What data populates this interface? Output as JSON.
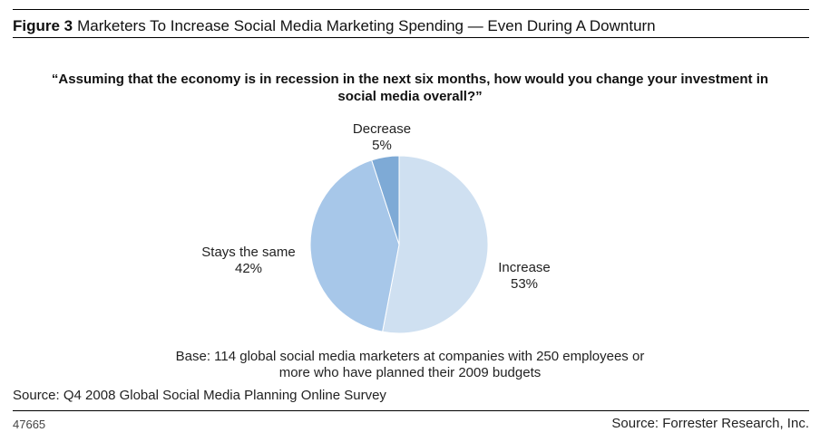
{
  "header": {
    "figure_label": "Figure 3",
    "title": "Marketers To Increase Social Media Marketing Spending — Even During A Downturn"
  },
  "question": "“Assuming that the economy is in recession in the next six months, how would you change your investment in social media overall?”",
  "base_note": "Base: 114 global social media marketers at companies with 250 employees or more who have planned their 2009 budgets",
  "source_survey": "Source: Q4 2008 Global Social Media Planning Online Survey",
  "footer": {
    "doc_id": "47665",
    "source": "Source: Forrester Research, Inc."
  },
  "colors": {
    "increase": "#cfe0f1",
    "stays_the_same": "#a7c7e9",
    "decrease": "#7eaad6",
    "slice_edge": "#ffffff"
  },
  "chart_data": {
    "type": "pie",
    "start_angle_deg": 0,
    "direction": "clockwise",
    "slices": [
      {
        "label": "Increase",
        "value": 53,
        "value_label": "53%",
        "color": "#cfe0f1"
      },
      {
        "label": "Stays the same",
        "value": 42,
        "value_label": "42%",
        "color": "#a7c7e9"
      },
      {
        "label": "Decrease",
        "value": 5,
        "value_label": "5%",
        "color": "#7eaad6"
      }
    ]
  }
}
